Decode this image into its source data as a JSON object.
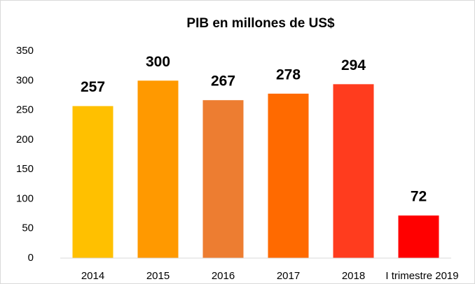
{
  "chart_data": {
    "type": "bar",
    "title": "PIB en millones de US$",
    "categories": [
      "2014",
      "2015",
      "2016",
      "2017",
      "2018",
      "I trimestre 2019"
    ],
    "values": [
      257,
      300,
      267,
      278,
      294,
      72
    ],
    "colors": [
      "#ffc000",
      "#ff9900",
      "#ed7d31",
      "#ff6a00",
      "#ff3c1e",
      "#ff0000"
    ],
    "ylim": [
      0,
      350
    ],
    "yticks": [
      0,
      50,
      100,
      150,
      200,
      250,
      300,
      350
    ],
    "grid": false
  }
}
